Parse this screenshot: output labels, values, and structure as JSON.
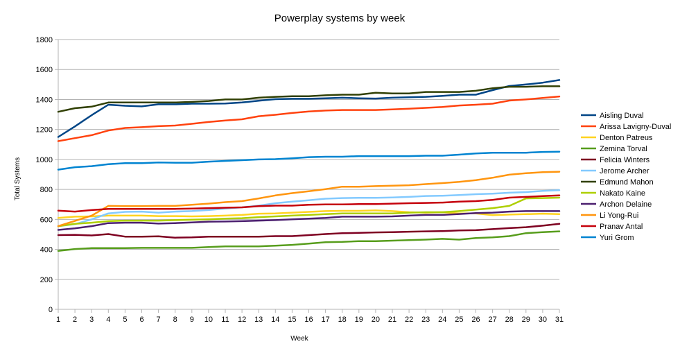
{
  "chart_data": {
    "type": "line",
    "title": "Powerplay systems by week",
    "xlabel": "Week",
    "ylabel": "Total Systems",
    "ylim": [
      0,
      1800
    ],
    "yticks": [
      0,
      200,
      400,
      600,
      800,
      1000,
      1200,
      1400,
      1600,
      1800
    ],
    "grid": "horizontal",
    "legend_position": "right",
    "x": [
      1,
      2,
      3,
      4,
      5,
      6,
      7,
      8,
      9,
      10,
      11,
      12,
      13,
      14,
      15,
      16,
      17,
      18,
      19,
      20,
      21,
      22,
      23,
      24,
      25,
      26,
      27,
      28,
      29,
      30,
      31
    ],
    "series": [
      {
        "name": "Aisling Duval",
        "color": "#004586",
        "values": [
          1150,
          1220,
          1295,
          1365,
          1358,
          1354,
          1368,
          1368,
          1372,
          1372,
          1373,
          1380,
          1392,
          1402,
          1405,
          1405,
          1408,
          1412,
          1408,
          1406,
          1412,
          1415,
          1418,
          1424,
          1432,
          1432,
          1462,
          1490,
          1500,
          1512,
          1530
        ]
      },
      {
        "name": "Arissa Lavigny-Duval",
        "color": "#ff420e",
        "values": [
          1122,
          1142,
          1162,
          1193,
          1210,
          1215,
          1222,
          1226,
          1238,
          1250,
          1260,
          1268,
          1288,
          1298,
          1310,
          1320,
          1326,
          1330,
          1330,
          1330,
          1334,
          1338,
          1344,
          1350,
          1360,
          1365,
          1372,
          1393,
          1400,
          1410,
          1420
        ]
      },
      {
        "name": "Denton Patreus",
        "color": "#ffd320",
        "values": [
          610,
          618,
          620,
          625,
          625,
          625,
          622,
          622,
          620,
          622,
          625,
          630,
          638,
          640,
          645,
          650,
          655,
          657,
          657,
          660,
          655,
          648,
          645,
          648,
          640,
          640,
          628,
          632,
          635,
          638,
          635
        ]
      },
      {
        "name": "Zemina Torval",
        "color": "#579d1c",
        "values": [
          390,
          402,
          408,
          408,
          408,
          410,
          410,
          410,
          410,
          415,
          420,
          420,
          420,
          425,
          430,
          438,
          448,
          450,
          455,
          455,
          458,
          462,
          465,
          470,
          465,
          475,
          480,
          488,
          508,
          515,
          520
        ]
      },
      {
        "name": "Felicia Winters",
        "color": "#7e0021",
        "values": [
          495,
          497,
          493,
          502,
          485,
          485,
          487,
          478,
          480,
          485,
          485,
          485,
          485,
          488,
          488,
          495,
          502,
          508,
          510,
          513,
          515,
          518,
          520,
          522,
          526,
          528,
          535,
          542,
          548,
          558,
          570
        ]
      },
      {
        "name": "Jerome Archer",
        "color": "#83caff",
        "values": [
          555,
          568,
          600,
          640,
          650,
          652,
          645,
          652,
          655,
          662,
          672,
          680,
          692,
          708,
          718,
          728,
          738,
          742,
          744,
          744,
          746,
          750,
          756,
          758,
          762,
          768,
          772,
          778,
          782,
          790,
          795
        ]
      },
      {
        "name": "Edmund Mahon",
        "color": "#314004",
        "values": [
          1318,
          1342,
          1352,
          1380,
          1380,
          1380,
          1380,
          1380,
          1384,
          1390,
          1400,
          1400,
          1412,
          1418,
          1422,
          1422,
          1428,
          1432,
          1432,
          1445,
          1440,
          1440,
          1450,
          1450,
          1450,
          1458,
          1475,
          1485,
          1485,
          1488,
          1488
        ]
      },
      {
        "name": "Nakato Kaine",
        "color": "#aecf00",
        "values": [
          555,
          570,
          578,
          588,
          592,
          592,
          592,
          595,
          598,
          600,
          605,
          608,
          615,
          620,
          625,
          630,
          635,
          640,
          640,
          640,
          640,
          645,
          648,
          648,
          655,
          665,
          675,
          690,
          740,
          742,
          745
        ]
      },
      {
        "name": "Archon Delaine",
        "color": "#4b1f6f",
        "values": [
          530,
          540,
          555,
          575,
          578,
          578,
          572,
          575,
          580,
          585,
          586,
          588,
          592,
          595,
          600,
          605,
          610,
          618,
          618,
          618,
          620,
          625,
          630,
          630,
          636,
          642,
          645,
          652,
          655,
          655,
          655
        ]
      },
      {
        "name": "Li Yong-Rui",
        "color": "#ff950e",
        "values": [
          555,
          590,
          625,
          690,
          688,
          688,
          690,
          690,
          698,
          705,
          715,
          722,
          740,
          760,
          775,
          788,
          802,
          818,
          818,
          822,
          825,
          828,
          835,
          842,
          850,
          862,
          878,
          898,
          908,
          915,
          918
        ]
      },
      {
        "name": "Pranav Antal",
        "color": "#c5000b",
        "values": [
          658,
          652,
          662,
          670,
          670,
          670,
          670,
          670,
          672,
          675,
          678,
          680,
          688,
          692,
          692,
          698,
          700,
          700,
          702,
          702,
          705,
          708,
          710,
          712,
          718,
          722,
          730,
          745,
          750,
          755,
          760
        ]
      },
      {
        "name": "Yuri Grom",
        "color": "#0084d1",
        "values": [
          932,
          948,
          955,
          968,
          975,
          975,
          980,
          978,
          978,
          985,
          990,
          995,
          1000,
          1002,
          1008,
          1015,
          1018,
          1018,
          1022,
          1022,
          1022,
          1022,
          1025,
          1025,
          1032,
          1040,
          1045,
          1045,
          1045,
          1050,
          1052
        ]
      }
    ]
  }
}
